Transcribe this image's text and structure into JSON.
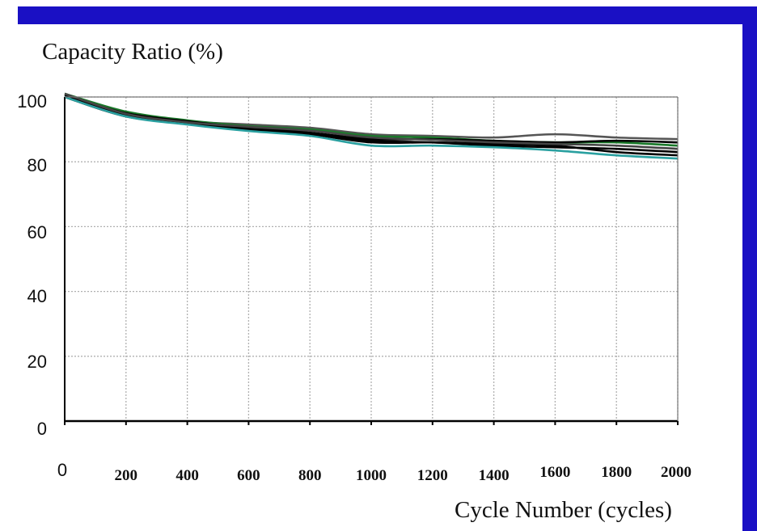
{
  "chart_data": {
    "type": "line",
    "title": "",
    "ylabel": "Capacity Ratio (%)",
    "xlabel": "Cycle Number (cycles)",
    "xlim": [
      0,
      2000
    ],
    "ylim": [
      0,
      100
    ],
    "x_ticks": [
      "0",
      "200",
      "400",
      "600",
      "800",
      "1000",
      "1200",
      "1400",
      "1600",
      "1800",
      "2000"
    ],
    "y_ticks": [
      "0",
      "20",
      "40",
      "60",
      "80",
      "100"
    ],
    "grid": true,
    "colors": {
      "frame": "#1a10c4",
      "grid": "#b0b0b0"
    },
    "x": [
      0,
      200,
      400,
      600,
      800,
      1000,
      1200,
      1400,
      1600,
      1800,
      2000
    ],
    "series": [
      {
        "color": "#555555",
        "values": [
          101,
          95,
          92.5,
          91.5,
          90.5,
          88.5,
          88,
          87.5,
          88.5,
          87.5,
          87
        ]
      },
      {
        "color": "#1a7a2a",
        "values": [
          101,
          95.5,
          92.8,
          91,
          90,
          88,
          87.5,
          86.5,
          86,
          86,
          85
        ]
      },
      {
        "color": "#000000",
        "values": [
          100.5,
          95,
          92.5,
          90.5,
          89,
          87,
          87,
          86.5,
          86,
          86.5,
          86
        ]
      },
      {
        "color": "#000000",
        "values": [
          100.5,
          94.5,
          92,
          90,
          88.5,
          86,
          86,
          85.5,
          85,
          83,
          82
        ]
      },
      {
        "color": "#000000",
        "values": [
          100,
          94,
          92,
          90,
          88.5,
          86.5,
          86,
          85,
          84.5,
          84,
          83
        ]
      },
      {
        "color": "#2aa0a0",
        "values": [
          100,
          94,
          91.5,
          89.5,
          88,
          85,
          85,
          84.5,
          83.5,
          82,
          81
        ]
      },
      {
        "color": "#444444",
        "values": [
          101,
          94.8,
          92.2,
          90.8,
          89.6,
          87.5,
          86.8,
          86,
          85.5,
          85,
          84
        ]
      }
    ]
  }
}
